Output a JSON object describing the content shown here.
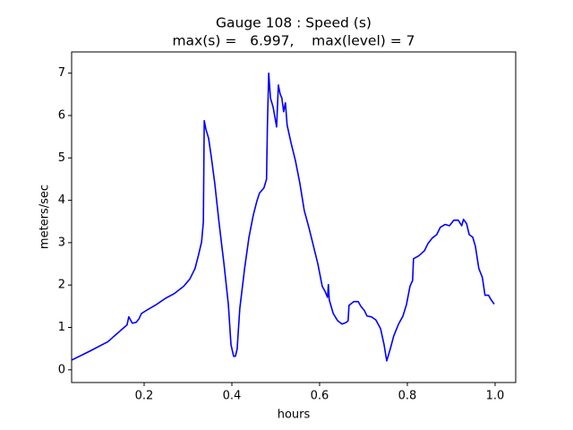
{
  "chart_data": {
    "type": "line",
    "title": [
      "Gauge 108 : Speed (s)",
      "max(s) =   6.997,    max(level) = 7"
    ],
    "x_label": "hours",
    "y_label": "meters/sec",
    "xlim": [
      0.0347,
      1.047
    ],
    "ylim": [
      -0.3,
      7.5
    ],
    "xticks": [
      0.2,
      0.4,
      0.6,
      0.8,
      {
        "value": 1,
        "label": "1.0"
      }
    ],
    "yticks": [
      0,
      1,
      2,
      3,
      4,
      5,
      6,
      7
    ],
    "grid": false,
    "series": [
      {
        "name": "speed",
        "color": "#0000ff",
        "x": [
          0.035,
          0.076,
          0.117,
          0.161,
          0.165,
          0.173,
          0.182,
          0.188,
          0.194,
          0.208,
          0.228,
          0.249,
          0.269,
          0.29,
          0.304,
          0.316,
          0.324,
          0.331,
          0.335,
          0.337,
          0.341,
          0.347,
          0.353,
          0.361,
          0.371,
          0.382,
          0.392,
          0.398,
          0.404,
          0.408,
          0.412,
          0.418,
          0.429,
          0.439,
          0.449,
          0.457,
          0.463,
          0.473,
          0.479,
          0.481,
          0.484,
          0.488,
          0.494,
          0.502,
          0.506,
          0.51,
          0.514,
          0.518,
          0.522,
          0.526,
          0.535,
          0.545,
          0.555,
          0.565,
          0.576,
          0.586,
          0.596,
          0.606,
          0.612,
          0.618,
          0.62,
          0.622,
          0.631,
          0.641,
          0.651,
          0.661,
          0.665,
          0.667,
          0.678,
          0.688,
          0.694,
          0.702,
          0.708,
          0.718,
          0.728,
          0.739,
          0.747,
          0.753,
          0.761,
          0.769,
          0.78,
          0.79,
          0.798,
          0.806,
          0.812,
          0.814,
          0.826,
          0.839,
          0.847,
          0.857,
          0.867,
          0.875,
          0.886,
          0.896,
          0.906,
          0.916,
          0.924,
          0.928,
          0.935,
          0.941,
          0.949,
          0.955,
          0.963,
          0.971,
          0.977,
          0.985,
          0.991,
          0.998
        ],
        "values": [
          0.23,
          0.44,
          0.66,
          1.06,
          1.25,
          1.1,
          1.12,
          1.2,
          1.33,
          1.42,
          1.54,
          1.69,
          1.8,
          1.97,
          2.14,
          2.39,
          2.71,
          3.02,
          3.49,
          5.88,
          5.67,
          5.46,
          5.03,
          4.4,
          3.45,
          2.5,
          1.54,
          0.59,
          0.32,
          0.32,
          0.49,
          1.44,
          2.39,
          3.13,
          3.66,
          3.98,
          4.17,
          4.29,
          4.5,
          5.77,
          7.0,
          6.41,
          6.2,
          5.73,
          6.72,
          6.51,
          6.41,
          6.09,
          6.3,
          5.77,
          5.35,
          4.93,
          4.4,
          3.76,
          3.34,
          2.92,
          2.5,
          1.97,
          1.86,
          1.71,
          2.01,
          1.65,
          1.33,
          1.16,
          1.08,
          1.12,
          1.16,
          1.52,
          1.61,
          1.61,
          1.5,
          1.4,
          1.27,
          1.25,
          1.18,
          0.97,
          0.59,
          0.21,
          0.49,
          0.8,
          1.08,
          1.27,
          1.54,
          1.97,
          2.11,
          2.62,
          2.69,
          2.81,
          2.98,
          3.11,
          3.19,
          3.36,
          3.43,
          3.4,
          3.53,
          3.53,
          3.4,
          3.55,
          3.45,
          3.19,
          3.13,
          2.92,
          2.39,
          2.18,
          1.76,
          1.76,
          1.65,
          1.55
        ]
      }
    ]
  }
}
